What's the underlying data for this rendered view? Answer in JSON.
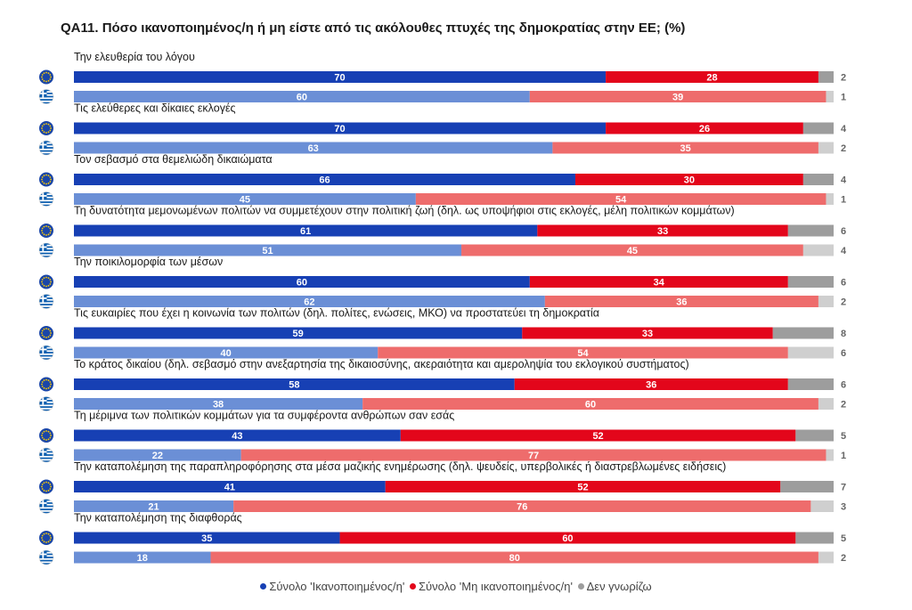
{
  "colors": {
    "eu_satisfied": "#1740b4",
    "eu_not_satisfied": "#e3061b",
    "eu_dont_know": "#9d9d9d",
    "gr_satisfied": "#6b8fd6",
    "gr_not_satisfied": "#ee6c6c",
    "gr_dont_know": "#cfcfcf",
    "eu_flag": "#1a46a8",
    "eu_star": "#ffcc00",
    "gr_flag_blue": "#0d5eaf",
    "value_text_outside": "#666666"
  },
  "icons": {
    "eu_row": "eu-flag-icon",
    "gr_row": "greece-flag-icon"
  },
  "chart_data": {
    "type": "bar",
    "orientation": "horizontal",
    "stacked": "percent",
    "title": "QA11. Πόσο ικανοποιημένος/η ή μη είστε από τις ακόλουθες πτυχές της δημοκρατίας στην ΕΕ; (%)",
    "rows": [
      "EU",
      "Greece"
    ],
    "series_names": [
      "Σύνολο 'Ικανοποιημένος/η'",
      "Σύνολο 'Μη ικανοποιημένος/η'",
      "Δεν γνωρίζω"
    ],
    "legend_position": "bottom",
    "xlim": [
      0,
      100
    ],
    "items": [
      {
        "label": "Την ελευθερία του λόγου",
        "eu": [
          70,
          28,
          2
        ],
        "gr": [
          60,
          39,
          1
        ]
      },
      {
        "label": "Τις ελεύθερες και δίκαιες εκλογές",
        "eu": [
          70,
          26,
          4
        ],
        "gr": [
          63,
          35,
          2
        ]
      },
      {
        "label": "Τον σεβασμό στα θεμελιώδη δικαιώματα",
        "eu": [
          66,
          30,
          4
        ],
        "gr": [
          45,
          54,
          1
        ]
      },
      {
        "label": "Τη δυνατότητα μεμονωμένων πολιτών να συμμετέχουν στην πολιτική ζωή (δηλ. ως υποψήφιοι στις εκλογές, μέλη πολιτικών κομμάτων)",
        "eu": [
          61,
          33,
          6
        ],
        "gr": [
          51,
          45,
          4
        ]
      },
      {
        "label": "Την ποικιλομορφία των μέσων",
        "eu": [
          60,
          34,
          6
        ],
        "gr": [
          62,
          36,
          2
        ]
      },
      {
        "label": "Τις ευκαιρίες που έχει η κοινωνία των πολιτών (δηλ. πολίτες, ενώσεις, ΜΚΟ) να προστατεύει τη δημοκρατία",
        "eu": [
          59,
          33,
          8
        ],
        "gr": [
          40,
          54,
          6
        ]
      },
      {
        "label": "Το κράτος δικαίου (δηλ. σεβασμό στην ανεξαρτησία της δικαιοσύνης,  ακεραιότητα και αμεροληψία του εκλογικού συστήματος)",
        "eu": [
          58,
          36,
          6
        ],
        "gr": [
          38,
          60,
          2
        ]
      },
      {
        "label": "Τη μέριμνα των πολιτικών κομμάτων για τα συμφέροντα ανθρώπων σαν εσάς",
        "eu": [
          43,
          52,
          5
        ],
        "gr": [
          22,
          77,
          1
        ]
      },
      {
        "label": "Την καταπολέμηση της παραπληροφόρησης στα μέσα μαζικής ενημέρωσης (δηλ. ψευδείς, υπερβολικές ή διαστρεβλωμένες ειδήσεις)",
        "eu": [
          41,
          52,
          7
        ],
        "gr": [
          21,
          76,
          3
        ]
      },
      {
        "label": "Την καταπολέμηση της διαφθοράς",
        "eu": [
          35,
          60,
          5
        ],
        "gr": [
          18,
          80,
          2
        ]
      }
    ]
  },
  "legend": [
    {
      "label": "Σύνολο 'Ικανοποιημένος/η'",
      "color_key": "eu_satisfied"
    },
    {
      "label": "Σύνολο 'Μη ικανοποιημένος/η'",
      "color_key": "eu_not_satisfied"
    },
    {
      "label": "Δεν γνωρίζω",
      "color_key": "eu_dont_know"
    }
  ]
}
